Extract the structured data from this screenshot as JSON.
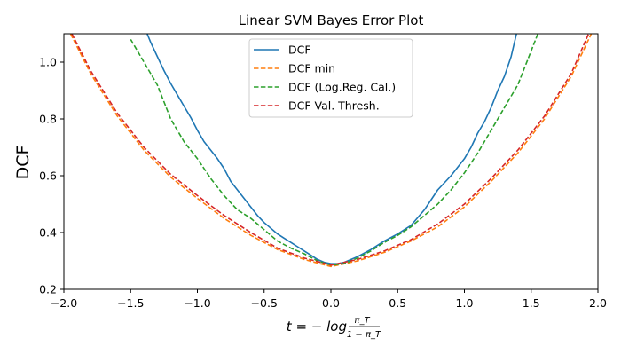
{
  "chart_data": {
    "type": "line",
    "title": "Linear SVM Bayes Error Plot",
    "ylabel": "DCF",
    "xlabel": {
      "prefix": "t = − log",
      "numerator": "π_T",
      "denominator": "1 − π_T"
    },
    "xlim": [
      -2.0,
      2.0
    ],
    "ylim": [
      0.2,
      1.1
    ],
    "xticks": [
      -2.0,
      -1.5,
      -1.0,
      -0.5,
      0.0,
      0.5,
      1.0,
      1.5,
      2.0
    ],
    "xtick_labels": [
      "−2.0",
      "−1.5",
      "−1.0",
      "−0.5",
      "0.0",
      "0.5",
      "1.0",
      "1.5",
      "2.0"
    ],
    "yticks": [
      0.2,
      0.4,
      0.6,
      0.8,
      1.0
    ],
    "ytick_labels": [
      "0.2",
      "0.4",
      "0.6",
      "0.8",
      "1.0"
    ],
    "grid": false,
    "legend_position": "top-center",
    "series": [
      {
        "name": "DCF",
        "color": "#1f77b4",
        "dash": "solid",
        "x": [
          -1.42,
          -1.35,
          -1.3,
          -1.25,
          -1.2,
          -1.15,
          -1.1,
          -1.05,
          -1.0,
          -0.95,
          -0.9,
          -0.85,
          -0.8,
          -0.75,
          -0.7,
          -0.65,
          -0.6,
          -0.55,
          -0.5,
          -0.45,
          -0.4,
          -0.35,
          -0.3,
          -0.25,
          -0.2,
          -0.15,
          -0.1,
          -0.05,
          0.0,
          0.05,
          0.1,
          0.2,
          0.3,
          0.4,
          0.5,
          0.6,
          0.7,
          0.8,
          0.9,
          1.0,
          1.05,
          1.1,
          1.15,
          1.2,
          1.25,
          1.3,
          1.35,
          1.39
        ],
        "y": [
          1.15,
          1.07,
          1.02,
          0.97,
          0.925,
          0.885,
          0.845,
          0.805,
          0.76,
          0.72,
          0.69,
          0.66,
          0.625,
          0.58,
          0.55,
          0.52,
          0.49,
          0.46,
          0.435,
          0.415,
          0.395,
          0.38,
          0.365,
          0.35,
          0.335,
          0.32,
          0.305,
          0.295,
          0.29,
          0.29,
          0.295,
          0.315,
          0.34,
          0.37,
          0.395,
          0.425,
          0.48,
          0.55,
          0.6,
          0.66,
          0.7,
          0.75,
          0.79,
          0.84,
          0.9,
          0.95,
          1.02,
          1.1
        ]
      },
      {
        "name": "DCF min",
        "color": "#ff7f0e",
        "dash": "dashed",
        "x": [
          -1.95,
          -1.8,
          -1.6,
          -1.4,
          -1.2,
          -1.0,
          -0.8,
          -0.6,
          -0.4,
          -0.2,
          0.0,
          0.2,
          0.4,
          0.6,
          0.8,
          1.0,
          1.2,
          1.4,
          1.6,
          1.8,
          1.95
        ],
        "y": [
          1.1,
          0.96,
          0.81,
          0.69,
          0.595,
          0.52,
          0.45,
          0.39,
          0.34,
          0.305,
          0.28,
          0.3,
          0.33,
          0.37,
          0.42,
          0.49,
          0.58,
          0.68,
          0.8,
          0.95,
          1.1
        ]
      },
      {
        "name": "DCF (Log.Reg. Cal.)",
        "color": "#2ca02c",
        "dash": "dashed",
        "x": [
          -1.5,
          -1.4,
          -1.3,
          -1.2,
          -1.1,
          -1.0,
          -0.9,
          -0.8,
          -0.7,
          -0.6,
          -0.5,
          -0.4,
          -0.3,
          -0.2,
          -0.1,
          0.0,
          0.1,
          0.2,
          0.3,
          0.4,
          0.5,
          0.6,
          0.7,
          0.8,
          0.9,
          1.0,
          1.1,
          1.2,
          1.3,
          1.4,
          1.5,
          1.55
        ],
        "y": [
          1.08,
          1.0,
          0.92,
          0.8,
          0.72,
          0.66,
          0.59,
          0.53,
          0.48,
          0.45,
          0.41,
          0.37,
          0.345,
          0.325,
          0.3,
          0.285,
          0.29,
          0.31,
          0.335,
          0.365,
          0.39,
          0.42,
          0.46,
          0.5,
          0.55,
          0.61,
          0.68,
          0.76,
          0.84,
          0.92,
          1.04,
          1.1
        ]
      },
      {
        "name": "DCF Val. Thresh.",
        "color": "#d62728",
        "dash": "dashed",
        "x": [
          -1.94,
          -1.8,
          -1.6,
          -1.4,
          -1.2,
          -1.0,
          -0.8,
          -0.6,
          -0.4,
          -0.2,
          0.0,
          0.2,
          0.4,
          0.6,
          0.8,
          1.0,
          1.2,
          1.4,
          1.6,
          1.8,
          1.93
        ],
        "y": [
          1.1,
          0.97,
          0.82,
          0.7,
          0.605,
          0.53,
          0.46,
          0.4,
          0.345,
          0.31,
          0.285,
          0.305,
          0.335,
          0.375,
          0.43,
          0.5,
          0.59,
          0.69,
          0.81,
          0.96,
          1.1
        ]
      }
    ]
  }
}
